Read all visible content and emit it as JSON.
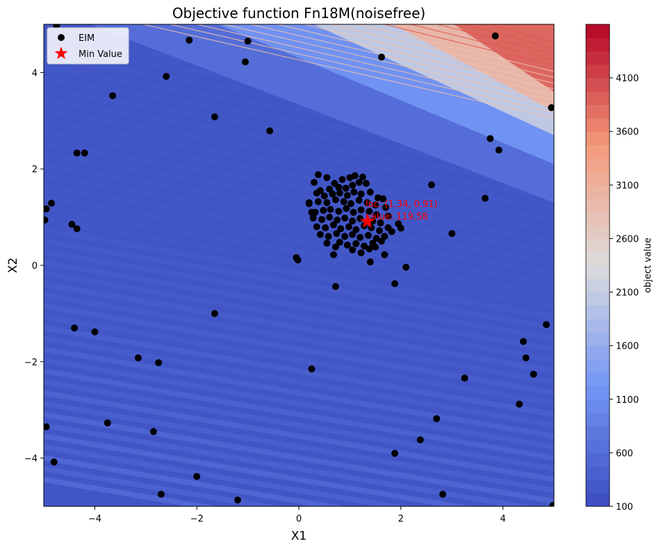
{
  "chart_data": {
    "type": "scatter",
    "title": "Objective function Fn18M(noisefree)",
    "xlabel": "X1",
    "ylabel": "X2",
    "xlim": [
      -5,
      5
    ],
    "ylim": [
      -5,
      5
    ],
    "x_ticks": [
      -4,
      -2,
      0,
      2,
      4
    ],
    "y_ticks": [
      -4,
      -2,
      0,
      2,
      4
    ],
    "grid": false,
    "legend_position": "top-left",
    "background": {
      "type": "contourf",
      "colormap": "coolwarm",
      "colorbar_label": "object value",
      "colorbar_ticks": [
        100,
        600,
        1100,
        1600,
        2100,
        2600,
        3100,
        3600,
        4100
      ],
      "range": [
        100,
        4600
      ]
    },
    "series": [
      {
        "name": "EIM",
        "marker": "circle",
        "color": "#000000",
        "points": [
          [
            -4.75,
            4.98
          ],
          [
            -2.15,
            4.67
          ],
          [
            -1.0,
            4.65
          ],
          [
            -1.05,
            4.22
          ],
          [
            -2.6,
            3.92
          ],
          [
            -3.65,
            3.52
          ],
          [
            -1.65,
            3.08
          ],
          [
            -0.57,
            2.79
          ],
          [
            -4.35,
            2.33
          ],
          [
            -4.2,
            2.33
          ],
          [
            -4.95,
            1.17
          ],
          [
            -4.85,
            1.29
          ],
          [
            -4.98,
            0.94
          ],
          [
            -4.45,
            0.85
          ],
          [
            -4.35,
            0.76
          ],
          [
            -1.65,
            -1.0
          ],
          [
            -4.4,
            -1.3
          ],
          [
            -4.0,
            -1.38
          ],
          [
            -3.15,
            -1.92
          ],
          [
            -2.75,
            -2.02
          ],
          [
            -3.75,
            -3.27
          ],
          [
            -2.85,
            -3.45
          ],
          [
            -4.95,
            -3.35
          ],
          [
            -4.8,
            -4.08
          ],
          [
            -2.0,
            -4.38
          ],
          [
            -2.7,
            -4.75
          ],
          [
            -1.2,
            -4.87
          ],
          [
            -0.05,
            0.16
          ],
          [
            -0.02,
            0.11
          ],
          [
            0.25,
            -2.15
          ],
          [
            1.62,
            4.32
          ],
          [
            3.85,
            4.76
          ],
          [
            4.95,
            3.27
          ],
          [
            3.75,
            2.63
          ],
          [
            3.92,
            2.39
          ],
          [
            3.65,
            1.39
          ],
          [
            2.6,
            1.67
          ],
          [
            3.0,
            0.66
          ],
          [
            2.1,
            -0.04
          ],
          [
            1.88,
            -0.38
          ],
          [
            0.72,
            -0.44
          ],
          [
            4.85,
            -1.23
          ],
          [
            4.4,
            -1.58
          ],
          [
            4.45,
            -1.92
          ],
          [
            4.6,
            -2.26
          ],
          [
            3.25,
            -2.34
          ],
          [
            4.32,
            -2.88
          ],
          [
            2.7,
            -3.18
          ],
          [
            2.38,
            -3.62
          ],
          [
            1.88,
            -3.9
          ],
          [
            2.82,
            -4.75
          ],
          [
            4.98,
            -4.98
          ],
          [
            0.38,
            1.88
          ],
          [
            0.55,
            1.82
          ],
          [
            0.7,
            1.7
          ],
          [
            0.85,
            1.78
          ],
          [
            1.0,
            1.82
          ],
          [
            1.1,
            1.86
          ],
          [
            1.25,
            1.83
          ],
          [
            0.3,
            1.72
          ],
          [
            0.42,
            1.55
          ],
          [
            0.6,
            1.58
          ],
          [
            0.78,
            1.62
          ],
          [
            0.92,
            1.6
          ],
          [
            1.05,
            1.66
          ],
          [
            1.18,
            1.72
          ],
          [
            1.32,
            1.7
          ],
          [
            0.35,
            1.5
          ],
          [
            0.5,
            1.44
          ],
          [
            0.66,
            1.48
          ],
          [
            0.8,
            1.5
          ],
          [
            0.95,
            1.45
          ],
          [
            1.08,
            1.52
          ],
          [
            1.22,
            1.48
          ],
          [
            1.4,
            1.52
          ],
          [
            1.55,
            1.4
          ],
          [
            0.2,
            1.3
          ],
          [
            0.38,
            1.32
          ],
          [
            0.55,
            1.3
          ],
          [
            0.72,
            1.36
          ],
          [
            0.88,
            1.32
          ],
          [
            1.02,
            1.28
          ],
          [
            1.18,
            1.35
          ],
          [
            1.34,
            1.3
          ],
          [
            1.5,
            1.25
          ],
          [
            1.65,
            1.38
          ],
          [
            0.32,
            1.1
          ],
          [
            0.48,
            1.14
          ],
          [
            0.62,
            1.16
          ],
          [
            0.78,
            1.12
          ],
          [
            0.93,
            1.18
          ],
          [
            1.07,
            1.1
          ],
          [
            1.22,
            1.15
          ],
          [
            1.38,
            1.12
          ],
          [
            1.52,
            1.05
          ],
          [
            1.7,
            1.2
          ],
          [
            0.28,
            0.98
          ],
          [
            0.45,
            0.95
          ],
          [
            0.6,
            1.0
          ],
          [
            0.75,
            0.94
          ],
          [
            0.9,
            0.98
          ],
          [
            1.05,
            0.92
          ],
          [
            1.2,
            0.97
          ],
          [
            1.45,
            0.92
          ],
          [
            1.6,
            0.88
          ],
          [
            1.75,
            1.02
          ],
          [
            0.35,
            0.8
          ],
          [
            0.52,
            0.78
          ],
          [
            0.68,
            0.84
          ],
          [
            0.82,
            0.76
          ],
          [
            0.98,
            0.8
          ],
          [
            1.12,
            0.74
          ],
          [
            1.28,
            0.82
          ],
          [
            1.42,
            0.78
          ],
          [
            1.58,
            0.72
          ],
          [
            1.75,
            0.78
          ],
          [
            0.42,
            0.64
          ],
          [
            0.58,
            0.6
          ],
          [
            0.74,
            0.66
          ],
          [
            0.9,
            0.6
          ],
          [
            1.05,
            0.64
          ],
          [
            1.2,
            0.58
          ],
          [
            1.36,
            0.62
          ],
          [
            1.52,
            0.56
          ],
          [
            1.68,
            0.6
          ],
          [
            1.82,
            0.7
          ],
          [
            0.55,
            0.46
          ],
          [
            0.8,
            0.48
          ],
          [
            0.95,
            0.42
          ],
          [
            1.12,
            0.45
          ],
          [
            1.28,
            0.4
          ],
          [
            1.45,
            0.46
          ],
          [
            1.62,
            0.5
          ],
          [
            0.72,
            0.38
          ],
          [
            1.05,
            0.32
          ],
          [
            1.22,
            0.26
          ],
          [
            1.38,
            0.34
          ],
          [
            1.5,
            0.38
          ],
          [
            0.68,
            0.22
          ],
          [
            1.4,
            0.07
          ],
          [
            1.68,
            0.22
          ],
          [
            1.95,
            0.86
          ],
          [
            2.0,
            0.77
          ],
          [
            0.2,
            1.28
          ],
          [
            0.25,
            1.1
          ]
        ]
      },
      {
        "name": "Min Value",
        "marker": "star",
        "color": "#ff0000",
        "points": [
          [
            1.34,
            0.91
          ]
        ]
      }
    ],
    "annotations": [
      {
        "text": "loc: (1.34, 0.91)",
        "x": 1.34,
        "y": 1.27,
        "color": "#ff0000"
      },
      {
        "text": "value: 119.58",
        "x": 1.34,
        "y": 1.02,
        "color": "#ff0000"
      }
    ]
  }
}
